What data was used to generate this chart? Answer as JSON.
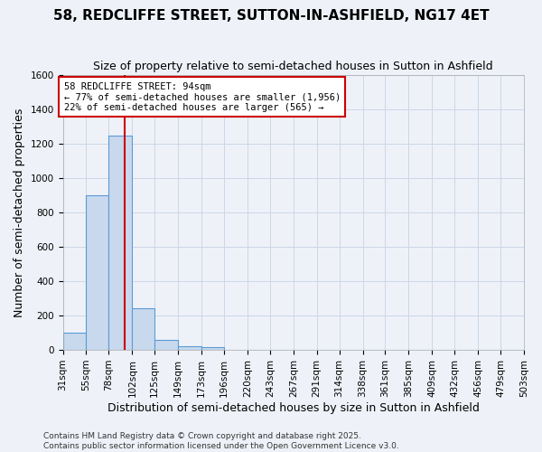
{
  "title": "58, REDCLIFFE STREET, SUTTON-IN-ASHFIELD, NG17 4ET",
  "subtitle": "Size of property relative to semi-detached houses in Sutton in Ashfield",
  "xlabel": "Distribution of semi-detached houses by size in Sutton in Ashfield",
  "ylabel": "Number of semi-detached properties",
  "footnote1": "Contains HM Land Registry data © Crown copyright and database right 2025.",
  "footnote2": "Contains public sector information licensed under the Open Government Licence v3.0.",
  "bins": [
    31,
    55,
    78,
    102,
    125,
    149,
    173,
    196,
    220,
    243,
    267,
    291,
    314,
    338,
    361,
    385,
    409,
    432,
    456,
    479,
    503
  ],
  "bin_labels": [
    "31sqm",
    "55sqm",
    "78sqm",
    "102sqm",
    "125sqm",
    "149sqm",
    "173sqm",
    "196sqm",
    "220sqm",
    "243sqm",
    "267sqm",
    "291sqm",
    "314sqm",
    "338sqm",
    "361sqm",
    "385sqm",
    "409sqm",
    "432sqm",
    "456sqm",
    "479sqm",
    "503sqm"
  ],
  "counts": [
    100,
    900,
    1250,
    240,
    60,
    20,
    15,
    0,
    0,
    0,
    0,
    0,
    0,
    0,
    0,
    0,
    0,
    0,
    0,
    0
  ],
  "bar_color": "#c8d9ee",
  "bar_edge_color": "#5b9bd5",
  "bar_linewidth": 0.8,
  "grid_color": "#ccd6e8",
  "bg_color": "#eef2f8",
  "property_sqm": 94,
  "red_line_color": "#cc0000",
  "annotation_line1": "58 REDCLIFFE STREET: 94sqm",
  "annotation_line2": "← 77% of semi-detached houses are smaller (1,956)",
  "annotation_line3": "22% of semi-detached houses are larger (565) →",
  "annotation_box_color": "#ffffff",
  "annotation_box_edge": "#cc0000",
  "ylim": [
    0,
    1600
  ],
  "yticks": [
    0,
    200,
    400,
    600,
    800,
    1000,
    1200,
    1400,
    1600
  ],
  "title_fontsize": 11,
  "subtitle_fontsize": 9,
  "xlabel_fontsize": 9,
  "ylabel_fontsize": 9,
  "tick_fontsize": 7.5,
  "annotation_fontsize": 7.5,
  "footnote_fontsize": 6.5
}
